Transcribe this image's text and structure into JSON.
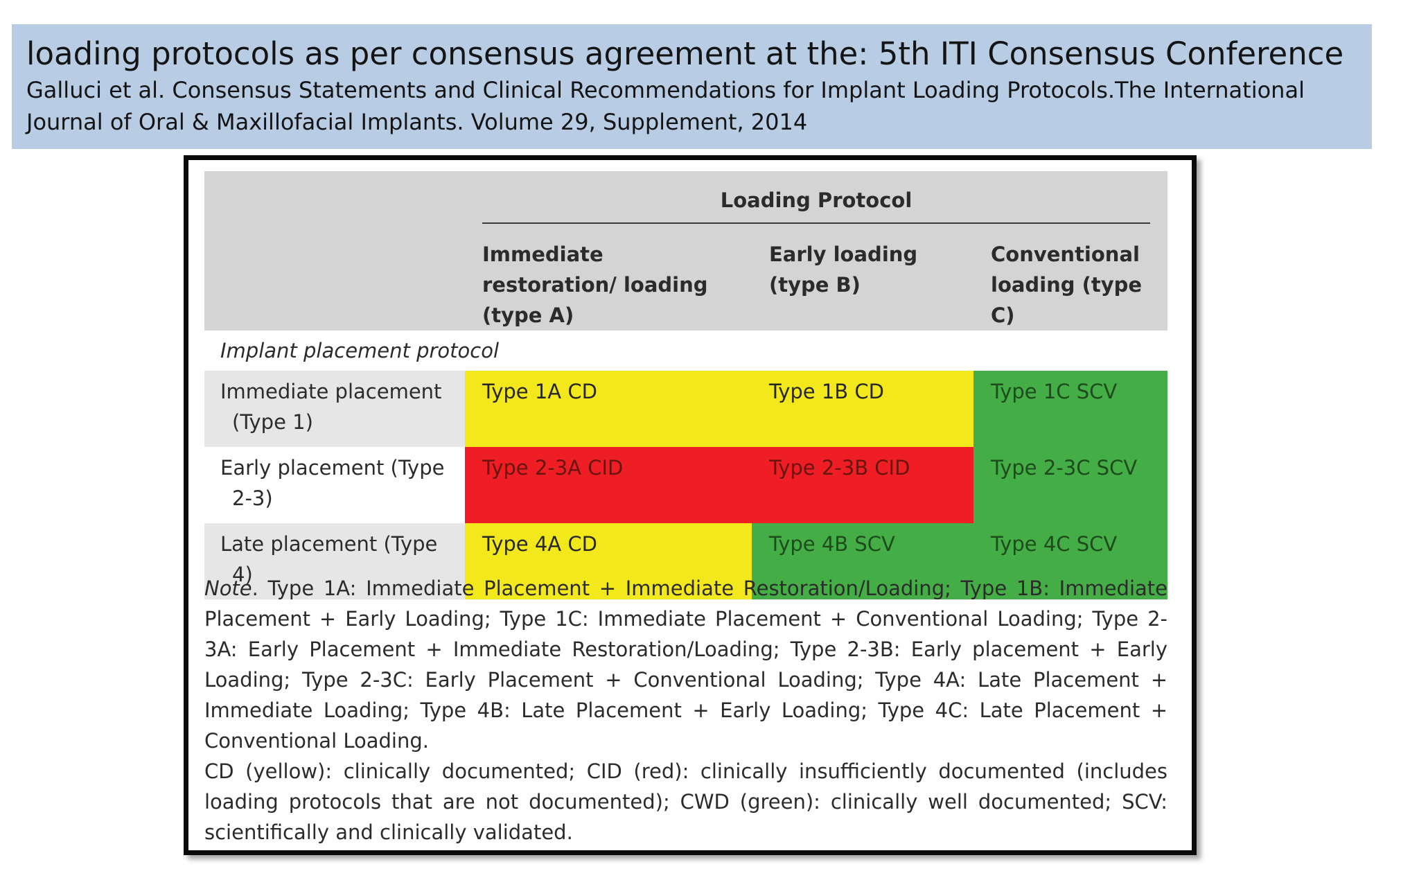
{
  "header": {
    "title": "loading protocols as per consensus agreement at the: 5th ITI Consensus Conference",
    "citation": "Galluci et al. Consensus Statements and Clinical Recommendations for Implant Loading Protocols.The International Journal of Oral & Maxillofacial Implants. Volume 29, Supplement, 2014"
  },
  "table": {
    "group_header": "Loading Protocol",
    "columns": [
      "Immediate restoration/ loading (type A)",
      "Early loading (type B)",
      "Conventional loading (type C)"
    ],
    "section_label": "Implant placement protocol",
    "rows": [
      {
        "label_line1": "Immediate placement",
        "label_line2": "(Type 1)",
        "cells": [
          "Type 1A CD",
          "Type 1B CD",
          "Type 1C SCV"
        ]
      },
      {
        "label_line1": "Early placement (Type",
        "label_line2": "2-3)",
        "cells": [
          "Type 2-3A CID",
          "Type 2-3B CID",
          "Type 2-3C SCV"
        ]
      },
      {
        "label_line1": "Late placement (Type",
        "label_line2": "4)",
        "cells": [
          "Type 4A CD",
          "Type 4B SCV",
          "Type 4C SCV"
        ]
      }
    ],
    "colors": {
      "cd_yellow": "#f3e81b",
      "cid_red": "#ee1e24",
      "scv_green": "#45ad46",
      "header_gray": "#d4d4d4"
    }
  },
  "note": {
    "prefix": "Note",
    "text": ". Type 1A: Immediate Placement + Immediate Restoration/Loading; Type 1B: Immediate Placement + Early Loading; Type 1C: Immediate Placement + Conventional Loading; Type 2-3A: Early Placement + Immediate Restoration/Loading; Type 2-3B: Early placement + Early Loading; Type 2-3C: Early Placement + Conventional Loading; Type 4A: Late Placement + Immediate Loading; Type 4B: Late Placement + Early Loading; Type 4C: Late Placement + Conventional Loading.",
    "legend": "CD (yellow): clinically documented; CID (red): clinically insufficiently documented (includes loading protocols that are not documented); CWD (green): clinically well documented; SCV: scientifically and clinically validated."
  }
}
